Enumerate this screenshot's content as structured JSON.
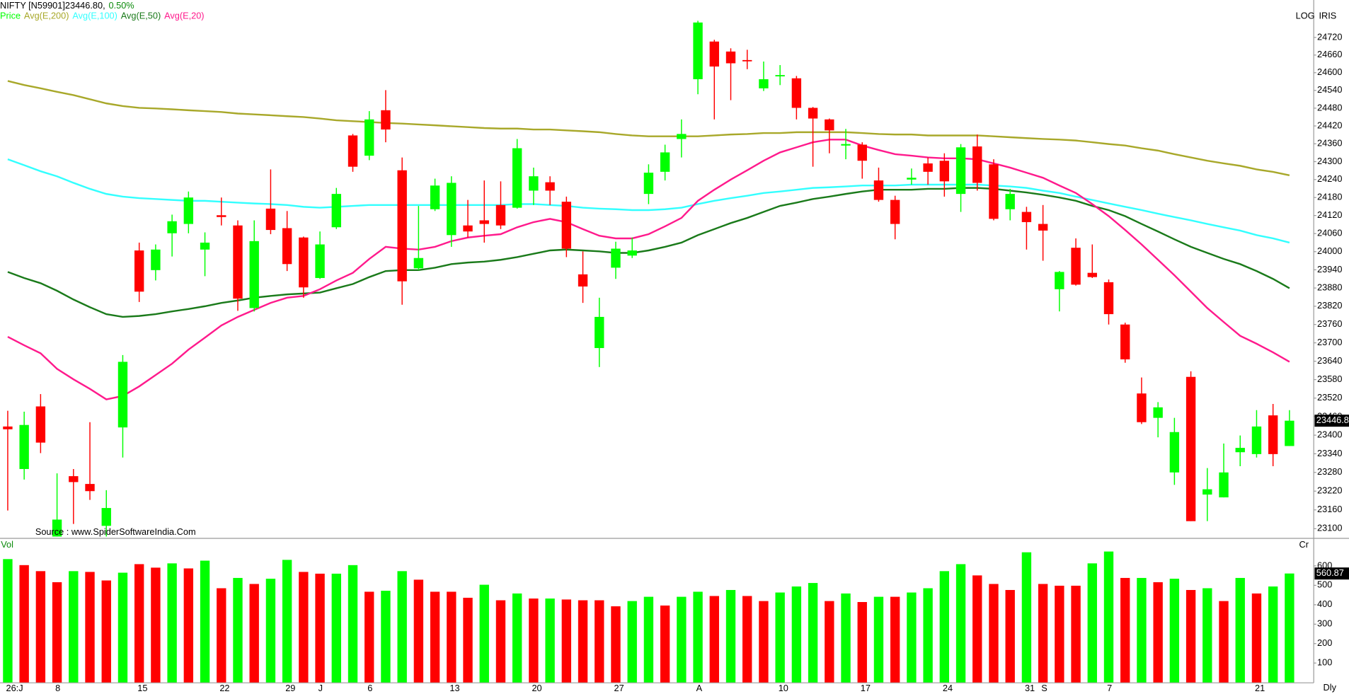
{
  "chart_data": [
    {
      "type": "candlestick",
      "title": "NIFTY [N59901]23446.80,",
      "change": "0.50%",
      "price_name": "Price",
      "price_color": "#00ff00",
      "source": "Source : www.SpiderSoftwareIndia.Com",
      "scale_label": "LOG",
      "corner_label": "IRIS",
      "up_color": "#00ff00",
      "down_color": "#ff0000",
      "log_scale": true,
      "ylim": [
        23072,
        24848
      ],
      "yticks": [
        23100,
        23160,
        23220,
        23280,
        23340,
        23400,
        23460,
        23520,
        23580,
        23640,
        23700,
        23760,
        23820,
        23880,
        23940,
        24000,
        24060,
        24120,
        24180,
        24240,
        24300,
        24360,
        24420,
        24480,
        24540,
        24600,
        24660,
        24720
      ],
      "open": [
        23428,
        23291,
        23493,
        23075,
        23268,
        23243,
        23109,
        23425,
        24004,
        23939,
        24061,
        24092,
        24007,
        24121,
        24087,
        23814,
        24143,
        24078,
        24047,
        23913,
        24081,
        24388,
        24320,
        24473,
        24271,
        23945,
        24141,
        24055,
        24087,
        24104,
        24155,
        24146,
        24203,
        24231,
        24166,
        23925,
        23683,
        23947,
        23987,
        24192,
        24266,
        24376,
        24578,
        24706,
        24672,
        24643,
        24547,
        24589,
        24581,
        24481,
        24442,
        24354,
        24357,
        24237,
        24172,
        24240,
        24294,
        24303,
        24192,
        24351,
        24291,
        24141,
        24132,
        24092,
        23876,
        24013,
        23930,
        23899,
        23760,
        23535,
        23456,
        23280,
        23589,
        23209,
        23200,
        23345,
        23339,
        23464,
        23365
      ],
      "high": [
        23479,
        23476,
        23533,
        23277,
        23291,
        23442,
        23223,
        23660,
        24030,
        24024,
        24123,
        24200,
        24064,
        24180,
        24104,
        24104,
        24274,
        24135,
        24050,
        24067,
        24212,
        24393,
        24470,
        24541,
        24314,
        24152,
        24243,
        24251,
        24172,
        24237,
        24234,
        24376,
        24280,
        24251,
        24183,
        24001,
        23848,
        24033,
        24047,
        24291,
        24357,
        24442,
        24777,
        24712,
        24683,
        24678,
        24638,
        24626,
        24589,
        24484,
        24445,
        24410,
        24365,
        24280,
        24186,
        24277,
        24314,
        24328,
        24359,
        24391,
        24308,
        24209,
        24149,
        24155,
        23936,
        24044,
        24024,
        23908,
        23766,
        23587,
        23507,
        23456,
        23607,
        23294,
        23373,
        23399,
        23481,
        23501,
        23481
      ],
      "low": [
        23158,
        23257,
        23342,
        23075,
        23115,
        23192,
        23075,
        23328,
        23834,
        23905,
        23984,
        24061,
        23919,
        24087,
        23805,
        23803,
        24058,
        23936,
        23848,
        23910,
        24075,
        24266,
        24305,
        24365,
        23825,
        23939,
        24135,
        24016,
        24047,
        24030,
        24075,
        24143,
        24155,
        24155,
        23982,
        23831,
        23621,
        23910,
        23979,
        24158,
        24237,
        24314,
        24527,
        24442,
        24507,
        24612,
        24538,
        24558,
        24442,
        24283,
        24328,
        24308,
        24243,
        24166,
        24041,
        24223,
        24223,
        24183,
        24132,
        24203,
        24104,
        24104,
        24007,
        23970,
        23803,
        23888,
        23913,
        23760,
        23635,
        23436,
        23393,
        23240,
        23124,
        23124,
        23200,
        23300,
        23328,
        23300,
        23365
      ],
      "close": [
        23419,
        23433,
        23376,
        23129,
        23249,
        23220,
        23166,
        23638,
        23868,
        24007,
        24101,
        24180,
        24030,
        24115,
        23845,
        24035,
        24072,
        23959,
        23882,
        24024,
        24192,
        24283,
        24442,
        24408,
        23902,
        23979,
        24220,
        24229,
        24067,
        24092,
        24087,
        24345,
        24251,
        24203,
        24010,
        23885,
        23785,
        24010,
        24004,
        24263,
        24331,
        24393,
        24771,
        24621,
        24632,
        24641,
        24578,
        24592,
        24481,
        24445,
        24405,
        24359,
        24303,
        24172,
        24092,
        24246,
        24266,
        24234,
        24348,
        24229,
        24109,
        24192,
        24098,
        24070,
        23933,
        23891,
        23916,
        23794,
        23646,
        23442,
        23490,
        23410,
        23124,
        23226,
        23280,
        23359,
        23428,
        23339,
        23446.8
      ],
      "series": [
        {
          "name": "Avg(E,200)",
          "color": "#a8a82a",
          "values": [
            24572,
            24558,
            24547,
            24535,
            24524,
            24510,
            24496,
            24487,
            24481,
            24479,
            24476,
            24473,
            24470,
            24467,
            24462,
            24459,
            24456,
            24453,
            24450,
            24445,
            24439,
            24436,
            24433,
            24430,
            24428,
            24425,
            24422,
            24419,
            24416,
            24413,
            24411,
            24411,
            24408,
            24408,
            24405,
            24402,
            24399,
            24393,
            24388,
            24385,
            24385,
            24385,
            24385,
            24388,
            24391,
            24393,
            24396,
            24396,
            24399,
            24399,
            24399,
            24399,
            24396,
            24393,
            24391,
            24391,
            24388,
            24388,
            24388,
            24388,
            24385,
            24382,
            24379,
            24376,
            24374,
            24371,
            24365,
            24359,
            24354,
            24345,
            24337,
            24325,
            24314,
            24303,
            24294,
            24286,
            24274,
            24266,
            24254
          ]
        },
        {
          "name": "Avg(E,100)",
          "color": "#33ffff",
          "values": [
            24308,
            24288,
            24268,
            24251,
            24229,
            24209,
            24192,
            24183,
            24178,
            24175,
            24172,
            24169,
            24169,
            24166,
            24163,
            24160,
            24158,
            24155,
            24149,
            24146,
            24149,
            24152,
            24155,
            24155,
            24155,
            24155,
            24155,
            24155,
            24155,
            24155,
            24155,
            24158,
            24158,
            24155,
            24152,
            24146,
            24143,
            24141,
            24138,
            24138,
            24141,
            24146,
            24158,
            24169,
            24178,
            24186,
            24195,
            24200,
            24206,
            24212,
            24214,
            24217,
            24220,
            24220,
            24220,
            24223,
            24223,
            24223,
            24223,
            24223,
            24220,
            24217,
            24212,
            24203,
            24195,
            24183,
            24172,
            24160,
            24149,
            24138,
            24126,
            24115,
            24104,
            24092,
            24081,
            24070,
            24055,
            24044,
            24030
          ]
        },
        {
          "name": "Avg(E,50)",
          "color": "#1a7a1a",
          "values": [
            23933,
            23913,
            23896,
            23871,
            23842,
            23817,
            23794,
            23785,
            23788,
            23794,
            23803,
            23811,
            23820,
            23831,
            23839,
            23848,
            23854,
            23859,
            23862,
            23865,
            23879,
            23893,
            23916,
            23936,
            23939,
            23939,
            23947,
            23959,
            23964,
            23967,
            23973,
            23982,
            23993,
            24004,
            24007,
            24004,
            24001,
            23996,
            23996,
            24004,
            24016,
            24030,
            24055,
            24075,
            24095,
            24112,
            24132,
            24152,
            24163,
            24175,
            24183,
            24192,
            24200,
            24206,
            24206,
            24206,
            24209,
            24209,
            24212,
            24212,
            24209,
            24203,
            24197,
            24189,
            24180,
            24169,
            24152,
            24138,
            24118,
            24092,
            24067,
            24041,
            24016,
            23996,
            23976,
            23959,
            23936,
            23910,
            23879
          ]
        },
        {
          "name": "Avg(E,20)",
          "color": "#ff1a8c",
          "values": [
            23720,
            23692,
            23666,
            23615,
            23581,
            23550,
            23516,
            23527,
            23558,
            23595,
            23632,
            23678,
            23717,
            23757,
            23785,
            23808,
            23831,
            23848,
            23854,
            23876,
            23905,
            23930,
            23976,
            24016,
            24010,
            24007,
            24016,
            24035,
            24047,
            24053,
            24058,
            24081,
            24098,
            24109,
            24098,
            24075,
            24053,
            24044,
            24044,
            24058,
            24084,
            24112,
            24169,
            24206,
            24240,
            24271,
            24303,
            24331,
            24348,
            24365,
            24374,
            24374,
            24354,
            24339,
            24325,
            24320,
            24314,
            24311,
            24311,
            24308,
            24294,
            24280,
            24263,
            24246,
            24220,
            24195,
            24158,
            24118,
            24072,
            24024,
            23973,
            23922,
            23868,
            23814,
            23768,
            23723,
            23697,
            23669,
            23638
          ]
        }
      ]
    },
    {
      "type": "bar",
      "title": "Vol",
      "unit_label": "Cr",
      "period": "Dly",
      "ylim": [
        0,
        733
      ],
      "yticks": [
        100,
        200,
        300,
        400,
        500,
        600
      ],
      "categories": [
        "26:J",
        null,
        null,
        "8",
        null,
        null,
        null,
        null,
        "15",
        null,
        null,
        null,
        null,
        "22",
        null,
        null,
        null,
        "29",
        null,
        "J",
        null,
        null,
        "6",
        null,
        null,
        null,
        null,
        "13",
        null,
        null,
        null,
        null,
        "20",
        null,
        null,
        null,
        null,
        "27",
        null,
        null,
        null,
        null,
        "A",
        null,
        null,
        null,
        null,
        "10",
        null,
        null,
        null,
        null,
        "17",
        null,
        null,
        null,
        null,
        "24",
        null,
        null,
        null,
        null,
        "31",
        "S",
        null,
        null,
        null,
        "7",
        null,
        null,
        null,
        null,
        null,
        null,
        null,
        null,
        "21",
        null,
        null
      ],
      "values": [
        635,
        604,
        573,
        516,
        573,
        569,
        525,
        565,
        609,
        591,
        613,
        587,
        627,
        485,
        538,
        507,
        534,
        631,
        569,
        560,
        560,
        604,
        467,
        472,
        573,
        529,
        467,
        467,
        436,
        503,
        423,
        458,
        432,
        432,
        427,
        423,
        423,
        392,
        419,
        441,
        396,
        441,
        467,
        445,
        476,
        445,
        419,
        463,
        494,
        512,
        419,
        458,
        414,
        441,
        441,
        463,
        485,
        573,
        609,
        551,
        507,
        476,
        670,
        507,
        498,
        498,
        613,
        674,
        538,
        538,
        516,
        534,
        476,
        485,
        419,
        538,
        458,
        494,
        560.87
      ],
      "colors": [
        "#00ff00",
        "#ff0000",
        "#ff0000",
        "#ff0000",
        "#00ff00",
        "#ff0000",
        "#ff0000",
        "#00ff00",
        "#ff0000",
        "#ff0000",
        "#00ff00",
        "#ff0000",
        "#00ff00",
        "#ff0000",
        "#00ff00",
        "#ff0000",
        "#00ff00",
        "#00ff00",
        "#ff0000",
        "#ff0000",
        "#00ff00",
        "#00ff00",
        "#ff0000",
        "#00ff00",
        "#00ff00",
        "#ff0000",
        "#ff0000",
        "#ff0000",
        "#ff0000",
        "#00ff00",
        "#ff0000",
        "#00ff00",
        "#ff0000",
        "#00ff00",
        "#ff0000",
        "#ff0000",
        "#ff0000",
        "#ff0000",
        "#00ff00",
        "#00ff00",
        "#ff0000",
        "#00ff00",
        "#00ff00",
        "#ff0000",
        "#00ff00",
        "#ff0000",
        "#ff0000",
        "#00ff00",
        "#00ff00",
        "#00ff00",
        "#ff0000",
        "#00ff00",
        "#ff0000",
        "#00ff00",
        "#ff0000",
        "#00ff00",
        "#00ff00",
        "#00ff00",
        "#00ff00",
        "#ff0000",
        "#ff0000",
        "#ff0000",
        "#00ff00",
        "#ff0000",
        "#ff0000",
        "#ff0000",
        "#00ff00",
        "#00ff00",
        "#ff0000",
        "#00ff00",
        "#ff0000",
        "#00ff00",
        "#ff0000",
        "#00ff00",
        "#ff0000",
        "#00ff00",
        "#ff0000",
        "#00ff00",
        "#00ff00"
      ]
    }
  ]
}
